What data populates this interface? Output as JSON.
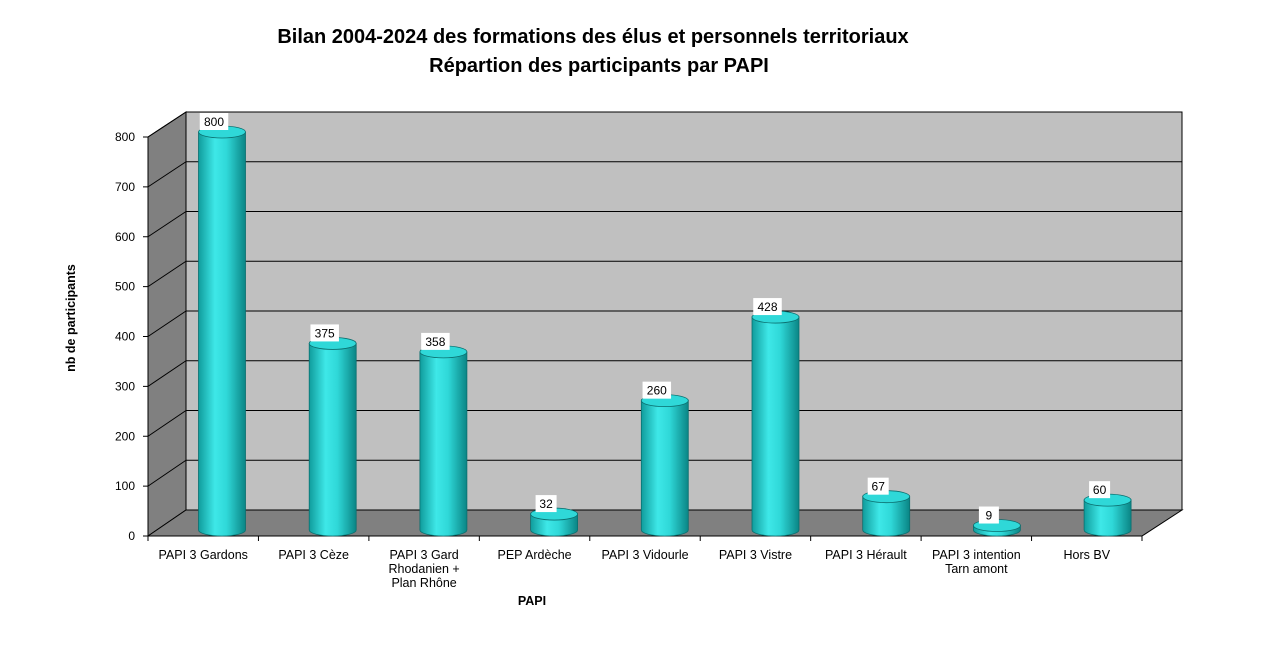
{
  "chart_data": {
    "type": "bar",
    "title_lines": [
      "Bilan 2004-2024 des formations des élus et personnels territoriaux",
      "Répartion des participants par PAPI"
    ],
    "xlabel": "PAPI",
    "ylabel": "nb de participants",
    "ylim": [
      0,
      800
    ],
    "yticks": [
      0,
      100,
      200,
      300,
      400,
      500,
      600,
      700,
      800
    ],
    "categories": [
      [
        "PAPI 3 Gardons"
      ],
      [
        "PAPI 3 Cèze"
      ],
      [
        "PAPI 3 Gard",
        "Rhodanien +",
        "Plan Rhône"
      ],
      [
        "PEP Ardèche"
      ],
      [
        "PAPI 3 Vidourle"
      ],
      [
        "PAPI 3 Vistre"
      ],
      [
        "PAPI 3 Hérault"
      ],
      [
        "PAPI 3 intention",
        "Tarn amont"
      ],
      [
        "Hors BV"
      ]
    ],
    "values": [
      800,
      375,
      358,
      32,
      260,
      428,
      67,
      9,
      60
    ],
    "style": "3d-cylinder",
    "grid": true,
    "colors": {
      "bar": "#2fd8d8",
      "bar_dark": "#0f9e9e",
      "back_wall": "#c0c0c0",
      "side_wall": "#808080",
      "floor": "#808080"
    }
  }
}
